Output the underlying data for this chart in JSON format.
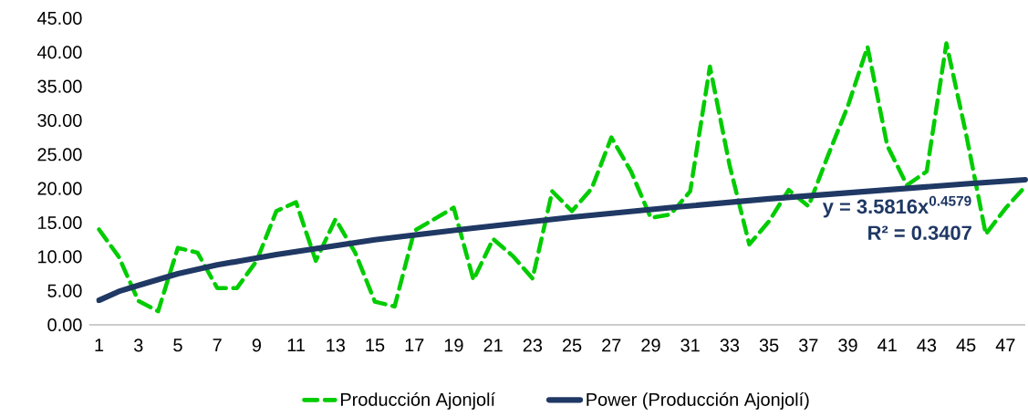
{
  "chart_data": {
    "type": "line",
    "x": [
      1,
      2,
      3,
      4,
      5,
      6,
      7,
      8,
      9,
      10,
      11,
      12,
      13,
      14,
      15,
      16,
      17,
      18,
      19,
      20,
      21,
      22,
      23,
      24,
      25,
      26,
      27,
      28,
      29,
      30,
      31,
      32,
      33,
      34,
      35,
      36,
      37,
      38,
      39,
      40,
      41,
      42,
      43,
      44,
      45,
      46,
      47,
      48
    ],
    "series": [
      {
        "name": "Producción Ajonjolí",
        "color": "#00cc00",
        "line_style": "dashed",
        "values": [
          14.0,
          10.0,
          3.5,
          2.0,
          11.3,
          10.6,
          5.4,
          5.4,
          9.4,
          16.7,
          18.0,
          9.4,
          15.5,
          10.6,
          3.4,
          2.7,
          13.8,
          15.5,
          17.2,
          6.6,
          12.6,
          10.1,
          6.8,
          19.6,
          16.7,
          20.0,
          27.5,
          22.5,
          15.7,
          16.2,
          19.6,
          37.9,
          23.4,
          11.8,
          15.2,
          19.8,
          17.4,
          24.9,
          32.1,
          40.8,
          26.3,
          20.5,
          22.5,
          41.3,
          28.0,
          13.3,
          17.1,
          20.3
        ]
      },
      {
        "name": "Power (Producción Ajonjolí)",
        "color": "#1f3864",
        "line_style": "solid",
        "x": [
          1,
          2,
          3,
          5,
          7,
          10,
          15,
          20,
          25,
          30,
          35,
          40,
          45,
          48
        ],
        "values": [
          3.6,
          4.9,
          5.8,
          7.5,
          8.8,
          10.3,
          12.5,
          14.2,
          15.8,
          17.2,
          18.5,
          19.6,
          20.7,
          21.3
        ]
      }
    ],
    "xlim": [
      0.5,
      48
    ],
    "xticks": [
      1,
      3,
      5,
      7,
      9,
      11,
      13,
      15,
      17,
      19,
      21,
      23,
      25,
      27,
      29,
      31,
      33,
      35,
      37,
      39,
      41,
      43,
      45,
      47
    ],
    "ylim": [
      0,
      45
    ],
    "yticks": [
      {
        "value": 0,
        "label": "0.00"
      },
      {
        "value": 5,
        "label": "5.00"
      },
      {
        "value": 10,
        "label": "10.00"
      },
      {
        "value": 15,
        "label": "15.00"
      },
      {
        "value": 20,
        "label": "20.00"
      },
      {
        "value": 25,
        "label": "25.00"
      },
      {
        "value": 30,
        "label": "30.00"
      },
      {
        "value": 35,
        "label": "35.00"
      },
      {
        "value": 40,
        "label": "40.00"
      },
      {
        "value": 45,
        "label": "45.00"
      }
    ],
    "legend": "bottom",
    "marker": "none",
    "annotations": [
      "y = 3.5816x$^{0.4579}$",
      "R² = 0.3407"
    ]
  }
}
